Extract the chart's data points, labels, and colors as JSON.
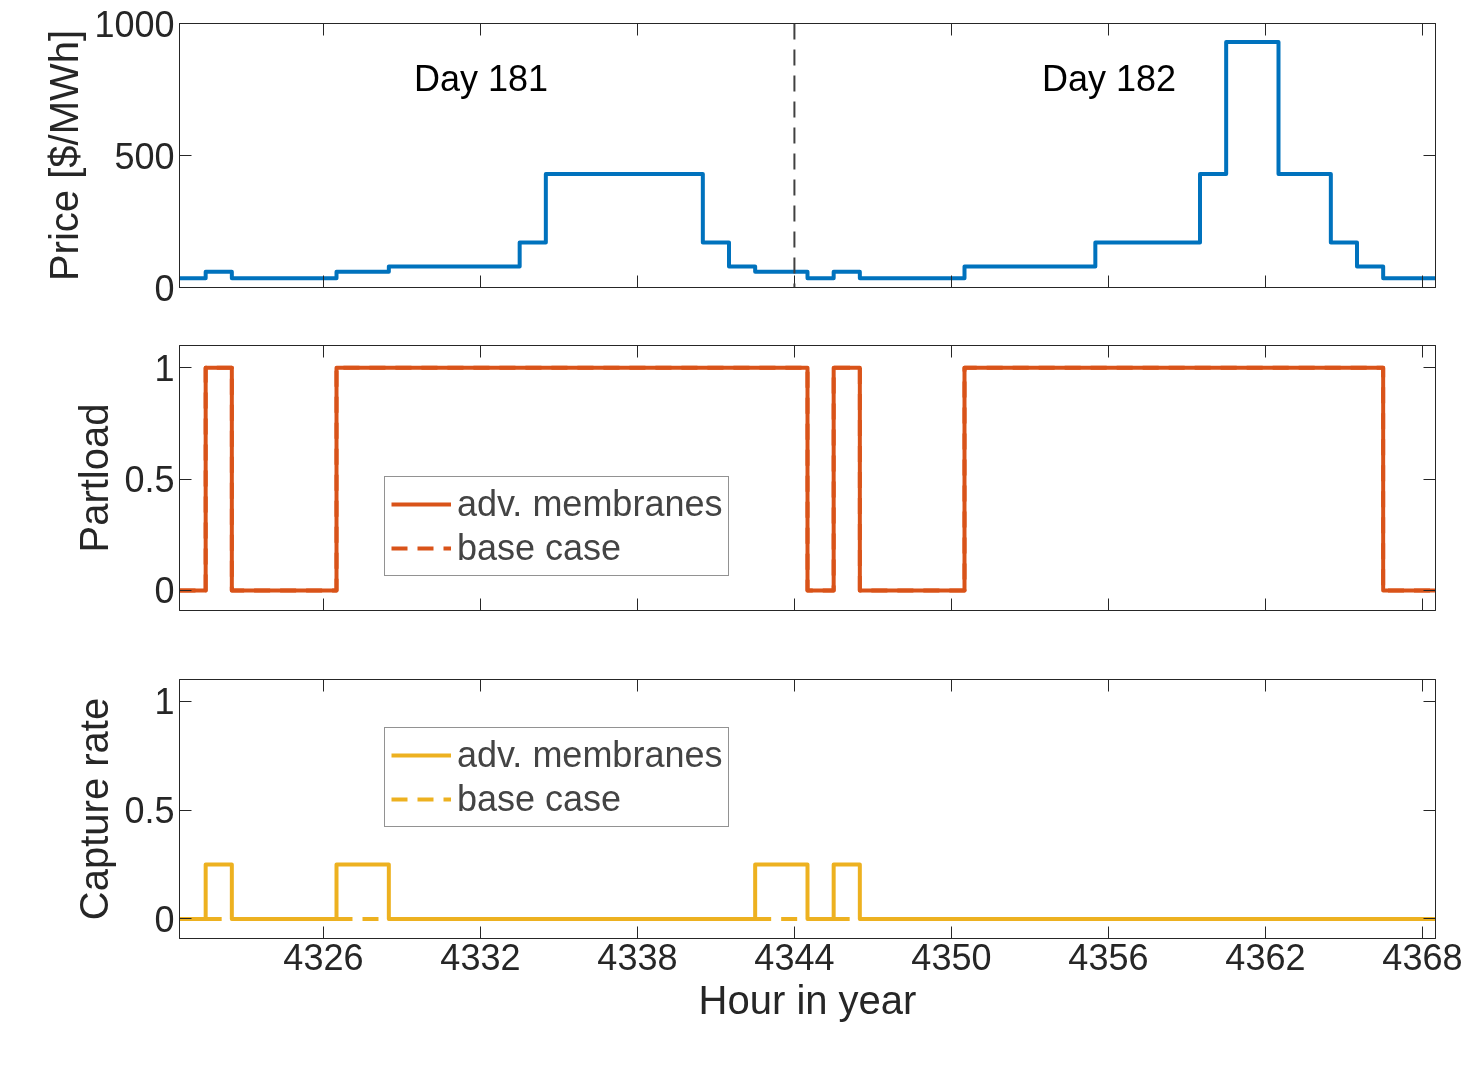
{
  "chart_data": [
    {
      "type": "step",
      "ylabel": "Price [$/MWh]",
      "xlim": [
        4320.5,
        4368.5
      ],
      "ylim": [
        0,
        1000
      ],
      "xticks": [
        4326,
        4332,
        4338,
        4344,
        4350,
        4356,
        4362,
        4368
      ],
      "yticks": [
        0,
        500,
        1000
      ],
      "tick_labels": "y",
      "grid": false,
      "legend": false,
      "series": [
        {
          "color": "#0072bd",
          "x": [
            4320.5,
            4321.5,
            4322.5,
            4326.5,
            4328.5,
            4333.5,
            4334.5,
            4340.5,
            4341.5,
            4342.5,
            4344.5,
            4345.5,
            4346.5,
            4350.5,
            4355.5,
            4359.5,
            4360.5,
            4362.5,
            4364.5,
            4365.5,
            4366.5,
            4368.5
          ],
          "values": [
            35,
            60,
            35,
            60,
            80,
            170,
            430,
            170,
            80,
            60,
            35,
            60,
            35,
            80,
            170,
            430,
            930,
            430,
            170,
            80,
            35,
            35
          ]
        }
      ],
      "ref_lines": [
        {
          "axis": "x",
          "value": 4344,
          "color": "#404040",
          "line_style": "dashed"
        }
      ],
      "annotations": [
        "Day 181",
        "Day 182"
      ]
    },
    {
      "type": "step",
      "ylabel": "Partload",
      "xlim": [
        4320.5,
        4368.5
      ],
      "ylim": [
        -0.09,
        1.1
      ],
      "xticks": [
        4326,
        4332,
        4338,
        4344,
        4350,
        4356,
        4362,
        4368
      ],
      "yticks": [
        0,
        0.5,
        1
      ],
      "tick_labels": "y",
      "grid": false,
      "legend": "left",
      "series": [
        {
          "name": "adv. membranes",
          "color": "#d95319",
          "line_style": "solid",
          "x": [
            4320.5,
            4321.5,
            4322.5,
            4326.5,
            4344.5,
            4345.5,
            4346.5,
            4350.5,
            4366.5,
            4368.5
          ],
          "values": [
            0,
            1,
            0,
            1,
            0,
            1,
            0,
            1,
            0,
            0
          ]
        },
        {
          "name": "base case",
          "color": "#d95319",
          "line_style": "dashed",
          "x": [
            4320.5,
            4321.5,
            4322.5,
            4326.5,
            4344.5,
            4345.5,
            4346.5,
            4350.5,
            4366.5,
            4368.5
          ],
          "values": [
            0,
            1,
            0,
            1,
            0,
            1,
            0,
            1,
            0,
            0
          ]
        }
      ]
    },
    {
      "type": "step",
      "xlabel": "Hour in year",
      "ylabel": "Capture rate",
      "xlim": [
        4320.5,
        4368.5
      ],
      "ylim": [
        -0.09,
        1.1
      ],
      "xticks": [
        4326,
        4332,
        4338,
        4344,
        4350,
        4356,
        4362,
        4368
      ],
      "yticks": [
        0,
        0.5,
        1
      ],
      "grid": false,
      "legend": "top left",
      "series": [
        {
          "name": "adv. membranes",
          "color": "#edb120",
          "line_style": "solid",
          "x": [
            4320.5,
            4321.5,
            4322.5,
            4326.5,
            4328.5,
            4342.5,
            4344.5,
            4345.5,
            4346.5,
            4368.5
          ],
          "values": [
            0,
            0.25,
            0,
            0.25,
            0,
            0.25,
            0,
            0.25,
            0,
            0
          ]
        },
        {
          "name": "base case",
          "type": "line",
          "color": "#edb120",
          "line_style": "dashed",
          "x": [
            4321.5,
            4322.5,
            4324,
            4326.5,
            4328.5,
            4335,
            4342.5,
            4344.5,
            4345,
            4345.5,
            4346.5
          ],
          "values": [
            0,
            0,
            null,
            0,
            0,
            null,
            0,
            0,
            null,
            0,
            0
          ]
        }
      ]
    }
  ]
}
